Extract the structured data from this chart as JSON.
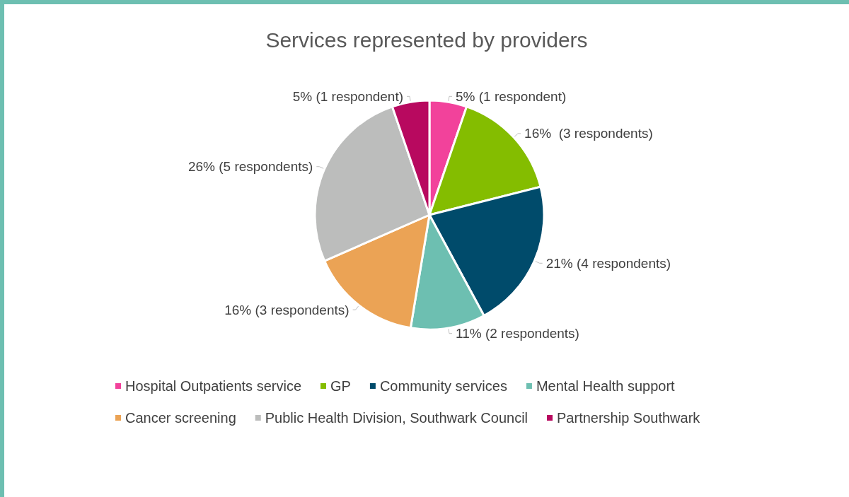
{
  "chart_data": {
    "type": "pie",
    "title": "Services represented by providers",
    "categories": [
      "Hospital Outpatients service",
      "GP",
      "Community services",
      "Mental Health support",
      "Cancer screening",
      "Public Health Division, Southwark Council",
      "Partnership Southwark"
    ],
    "values": [
      1,
      3,
      4,
      2,
      3,
      5,
      1
    ],
    "value_labels": [
      "5% (1 respondent)",
      "16%  (3 respondents)",
      "21% (4 respondents)",
      "11% (2 respondents)",
      "16% (3 respondents)",
      "26% (5 respondents)",
      "5% (1 respondent)"
    ],
    "colors": [
      "#f2429b",
      "#84bd00",
      "#004b6b",
      "#6dbfb1",
      "#eba355",
      "#bcbdbc",
      "#b8095f"
    ],
    "legend": "bottom"
  }
}
